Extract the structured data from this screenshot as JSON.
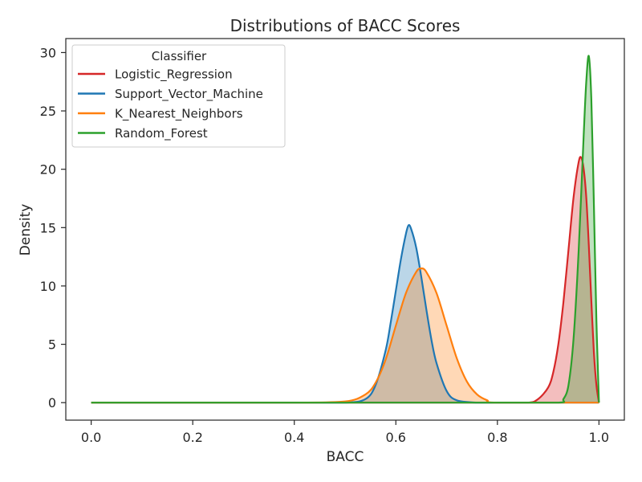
{
  "chart_data": {
    "type": "area",
    "title": "Distributions of BACC Scores",
    "xlabel": "BACC",
    "ylabel": "Density",
    "xlim": [
      -0.05,
      1.05
    ],
    "ylim": [
      -1.5,
      31.2
    ],
    "xticks": [
      "0.0",
      "0.2",
      "0.4",
      "0.6",
      "0.8",
      "1.0"
    ],
    "yticks": [
      "0",
      "5",
      "10",
      "15",
      "20",
      "25",
      "30"
    ],
    "grid": false,
    "legend": {
      "title": "Classifier",
      "position": "top-left"
    },
    "series": [
      {
        "name": "Logistic_Regression",
        "color": "#d62728",
        "x": [
          0.0,
          0.2,
          0.4,
          0.6,
          0.8,
          0.86,
          0.88,
          0.9,
          0.91,
          0.92,
          0.93,
          0.94,
          0.95,
          0.96,
          0.965,
          0.97,
          0.975,
          0.98,
          0.985,
          0.99,
          0.995,
          1.0
        ],
        "y": [
          0,
          0,
          0,
          0,
          0,
          0.0,
          0.3,
          1.3,
          2.6,
          5.0,
          8.6,
          13.1,
          17.6,
          20.6,
          21.0,
          20.0,
          17.6,
          13.5,
          8.7,
          4.3,
          1.5,
          0
        ]
      },
      {
        "name": "Support_Vector_Machine",
        "color": "#1f77b4",
        "x": [
          0.0,
          0.2,
          0.4,
          0.5,
          0.54,
          0.56,
          0.58,
          0.59,
          0.6,
          0.61,
          0.62,
          0.625,
          0.63,
          0.64,
          0.65,
          0.66,
          0.67,
          0.68,
          0.7,
          0.72,
          0.76,
          0.8,
          1.0
        ],
        "y": [
          0,
          0,
          0,
          0.0,
          0.3,
          1.5,
          4.5,
          6.9,
          9.6,
          12.3,
          14.5,
          15.2,
          14.9,
          13.3,
          10.8,
          8.0,
          5.4,
          3.4,
          1.0,
          0.2,
          0.0,
          0,
          0
        ]
      },
      {
        "name": "K_Nearest_Neighbors",
        "color": "#ff7f0e",
        "x": [
          0.0,
          0.2,
          0.4,
          0.5,
          0.54,
          0.56,
          0.58,
          0.6,
          0.62,
          0.64,
          0.65,
          0.66,
          0.68,
          0.7,
          0.72,
          0.74,
          0.76,
          0.78,
          0.8,
          1.0
        ],
        "y": [
          0,
          0,
          0,
          0.1,
          0.7,
          1.7,
          3.7,
          6.6,
          9.4,
          11.2,
          11.5,
          11.2,
          9.4,
          6.6,
          3.8,
          1.8,
          0.7,
          0.2,
          0.0,
          0
        ]
      },
      {
        "name": "Random_Forest",
        "color": "#2ca02c",
        "x": [
          0.0,
          0.2,
          0.4,
          0.6,
          0.8,
          0.92,
          0.93,
          0.94,
          0.95,
          0.96,
          0.97,
          0.975,
          0.98,
          0.985,
          0.99,
          0.995,
          1.0
        ],
        "y": [
          0,
          0,
          0,
          0,
          0,
          0.0,
          0.3,
          1.5,
          5.5,
          13.0,
          23.0,
          27.5,
          29.7,
          26.0,
          17.0,
          7.0,
          0
        ]
      }
    ]
  }
}
